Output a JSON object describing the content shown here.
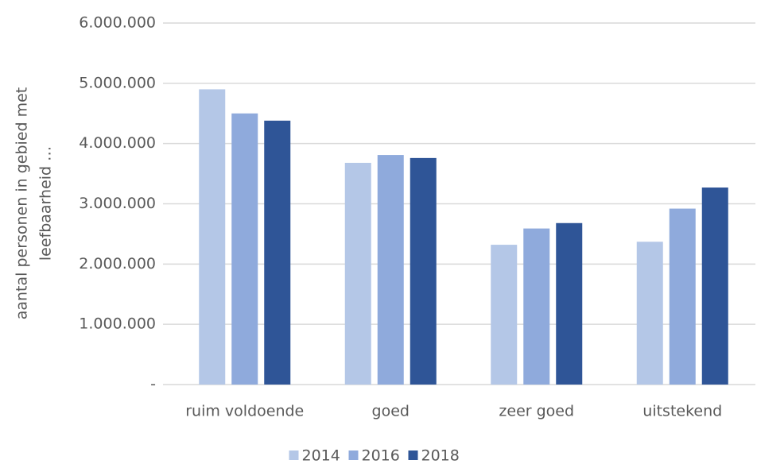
{
  "chart_data": {
    "type": "bar",
    "ylabel": [
      "aantal personen in gebied met",
      "leefbaarheid …"
    ],
    "categories": [
      "ruim voldoende",
      "goed",
      "zeer goed",
      "uitstekend"
    ],
    "series": [
      {
        "name": "2014",
        "color": "#b4c7e7",
        "values": [
          4900000,
          3680000,
          2320000,
          2370000
        ]
      },
      {
        "name": "2016",
        "color": "#8faadc",
        "values": [
          4500000,
          3810000,
          2590000,
          2920000
        ]
      },
      {
        "name": "2018",
        "color": "#2f5597",
        "values": [
          4380000,
          3760000,
          2680000,
          3270000
        ]
      }
    ],
    "ylim": [
      0,
      6000000
    ],
    "yticks": [
      {
        "value": 0,
        "label": "-"
      },
      {
        "value": 1000000,
        "label": "1.000.000"
      },
      {
        "value": 2000000,
        "label": "2.000.000"
      },
      {
        "value": 3000000,
        "label": "3.000.000"
      },
      {
        "value": 4000000,
        "label": "4.000.000"
      },
      {
        "value": 5000000,
        "label": "5.000.000"
      },
      {
        "value": 6000000,
        "label": "6.000.000"
      }
    ],
    "grid": true,
    "legend": "bottom"
  }
}
